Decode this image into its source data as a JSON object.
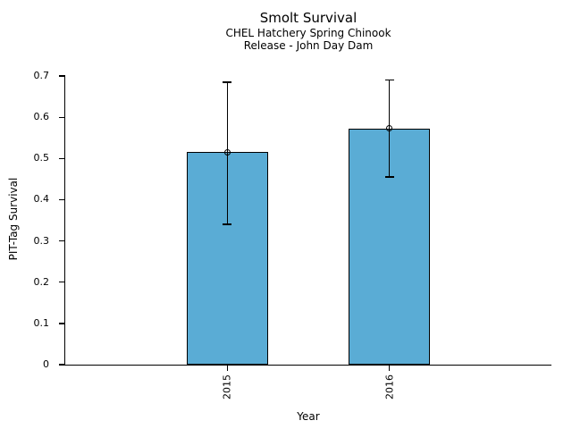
{
  "chart_data": {
    "type": "bar",
    "title": "Smolt Survival",
    "subtitle_lines": [
      "CHEL Hatchery Spring Chinook",
      "Release - John Day Dam"
    ],
    "xlabel": "Year",
    "ylabel": "PIT-Tag Survival",
    "categories": [
      "2015",
      "2016"
    ],
    "series": [
      {
        "name": "PIT-Tag Survival",
        "values": [
          0.515,
          0.573
        ],
        "error_low": [
          0.34,
          0.455
        ],
        "error_high": [
          0.685,
          0.69
        ]
      }
    ],
    "ylim": [
      0,
      0.7
    ],
    "yticks": [
      0,
      0.1,
      0.2,
      0.3,
      0.4,
      0.5,
      0.6,
      0.7
    ],
    "ytick_labels": [
      "0",
      "0.1",
      "0.2",
      "0.3",
      "0.4",
      "0.5",
      "0.6",
      "0.7"
    ],
    "grid": false,
    "legend": null,
    "marker": "open-circle",
    "colors": {
      "bar_fill": "#5AACD5",
      "bar_edge": "#000000",
      "axis": "#000000",
      "text": "#000000",
      "background": "#ffffff"
    }
  }
}
